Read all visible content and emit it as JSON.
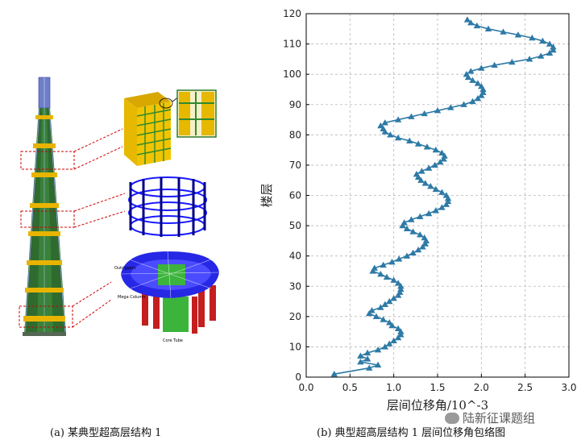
{
  "captions": {
    "a": "(a)  某典型超高层结构 1",
    "b": "(b)  典型超高层结构 1 层间位移角包络图"
  },
  "watermark": {
    "text": "陆新征课题组",
    "icon": "wechat-icon"
  },
  "figure_a": {
    "inset_labels": {
      "outrigger": "Outriggers",
      "mega_column": "Mega Column",
      "core_tube": "Core Tube"
    },
    "colors": {
      "tower": "#2f6b2f",
      "belt": "#e8b400",
      "callout": "#d00000",
      "frame": "#1a1aff",
      "core": "#3cb43c",
      "column": "#c41e1e"
    }
  },
  "chart_data": {
    "type": "line",
    "xlabel": "层间位移角/10^-3",
    "ylabel": "楼层",
    "xlim": [
      0.0,
      3.0
    ],
    "ylim": [
      0,
      120
    ],
    "xticks": [
      "0.0",
      "0.5",
      "1.0",
      "1.5",
      "2.0",
      "2.5",
      "3.0"
    ],
    "yticks": [
      "0",
      "10",
      "20",
      "30",
      "40",
      "50",
      "60",
      "70",
      "80",
      "90",
      "100",
      "110",
      "120"
    ],
    "grid": true,
    "marker": "triangle",
    "color": "#2e7aa6",
    "series": [
      {
        "points": [
          [
            0.32,
            1
          ],
          [
            0.72,
            3
          ],
          [
            0.82,
            4
          ],
          [
            0.62,
            5
          ],
          [
            0.7,
            6
          ],
          [
            0.62,
            7
          ],
          [
            0.7,
            8
          ],
          [
            0.82,
            9
          ],
          [
            0.9,
            10
          ],
          [
            0.95,
            11
          ],
          [
            1.0,
            12
          ],
          [
            1.05,
            13
          ],
          [
            1.08,
            14
          ],
          [
            1.08,
            15
          ],
          [
            1.05,
            16
          ],
          [
            0.98,
            17
          ],
          [
            0.95,
            18
          ],
          [
            0.88,
            19
          ],
          [
            0.8,
            20
          ],
          [
            0.72,
            21
          ],
          [
            0.75,
            22
          ],
          [
            0.85,
            23
          ],
          [
            0.9,
            24
          ],
          [
            0.95,
            25
          ],
          [
            1.0,
            26
          ],
          [
            1.05,
            27
          ],
          [
            1.07,
            28
          ],
          [
            1.08,
            29
          ],
          [
            1.08,
            30
          ],
          [
            1.05,
            31
          ],
          [
            1.0,
            32
          ],
          [
            0.92,
            33
          ],
          [
            0.85,
            34
          ],
          [
            0.76,
            35
          ],
          [
            0.78,
            36
          ],
          [
            0.88,
            37
          ],
          [
            0.98,
            38
          ],
          [
            1.06,
            39
          ],
          [
            1.15,
            40
          ],
          [
            1.22,
            41
          ],
          [
            1.28,
            42
          ],
          [
            1.33,
            43
          ],
          [
            1.36,
            44
          ],
          [
            1.37,
            45
          ],
          [
            1.35,
            46
          ],
          [
            1.3,
            47
          ],
          [
            1.22,
            48
          ],
          [
            1.15,
            49
          ],
          [
            1.1,
            50
          ],
          [
            1.12,
            51
          ],
          [
            1.2,
            52
          ],
          [
            1.3,
            53
          ],
          [
            1.4,
            54
          ],
          [
            1.48,
            55
          ],
          [
            1.55,
            56
          ],
          [
            1.6,
            57
          ],
          [
            1.62,
            58
          ],
          [
            1.62,
            59
          ],
          [
            1.6,
            60
          ],
          [
            1.55,
            61
          ],
          [
            1.48,
            62
          ],
          [
            1.42,
            63
          ],
          [
            1.36,
            64
          ],
          [
            1.31,
            65
          ],
          [
            1.28,
            66
          ],
          [
            1.26,
            67
          ],
          [
            1.32,
            68
          ],
          [
            1.4,
            69
          ],
          [
            1.47,
            70
          ],
          [
            1.53,
            71
          ],
          [
            1.57,
            72
          ],
          [
            1.58,
            73
          ],
          [
            1.55,
            74
          ],
          [
            1.48,
            75
          ],
          [
            1.38,
            76
          ],
          [
            1.28,
            77
          ],
          [
            1.18,
            78
          ],
          [
            1.05,
            79
          ],
          [
            0.96,
            80
          ],
          [
            0.9,
            81
          ],
          [
            0.88,
            82
          ],
          [
            0.85,
            83
          ],
          [
            0.9,
            84
          ],
          [
            1.05,
            85
          ],
          [
            1.2,
            86
          ],
          [
            1.35,
            87
          ],
          [
            1.5,
            88
          ],
          [
            1.65,
            89
          ],
          [
            1.8,
            90
          ],
          [
            1.9,
            91
          ],
          [
            1.96,
            92
          ],
          [
            2.0,
            93
          ],
          [
            2.02,
            94
          ],
          [
            2.02,
            95
          ],
          [
            2.0,
            96
          ],
          [
            1.96,
            97
          ],
          [
            1.9,
            98
          ],
          [
            1.85,
            99
          ],
          [
            1.83,
            100
          ],
          [
            1.88,
            101
          ],
          [
            2.0,
            102
          ],
          [
            2.15,
            103
          ],
          [
            2.35,
            104
          ],
          [
            2.55,
            105
          ],
          [
            2.68,
            106
          ],
          [
            2.78,
            107
          ],
          [
            2.82,
            108
          ],
          [
            2.82,
            109
          ],
          [
            2.78,
            110
          ],
          [
            2.7,
            111
          ],
          [
            2.58,
            112
          ],
          [
            2.42,
            113
          ],
          [
            2.25,
            114
          ],
          [
            2.08,
            115
          ],
          [
            1.95,
            116
          ],
          [
            1.88,
            117
          ],
          [
            1.84,
            118
          ]
        ]
      }
    ]
  }
}
